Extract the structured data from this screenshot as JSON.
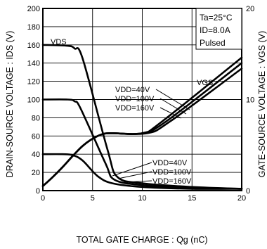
{
  "chart_data": {
    "type": "line",
    "xlabel": "TOTAL GATE CHARGE : Qg (nC)",
    "ylabel_left": "DRAIN-SOURCE VOLTAGE : IDS (V)",
    "ylabel_right": "GATE-SOURCE VOLTAGE : VGS (V)",
    "xlim": [
      0,
      20
    ],
    "ylim_left": [
      0,
      200
    ],
    "ylim_right": [
      0,
      20
    ],
    "x_ticks": [
      "0",
      "5",
      "10",
      "15",
      "20"
    ],
    "y_ticks_left": [
      "0",
      "20",
      "40",
      "60",
      "80",
      "100",
      "120",
      "140",
      "160",
      "180",
      "200"
    ],
    "y_ticks_right": [
      "0",
      "10",
      "20"
    ],
    "grid": true,
    "conditions": [
      "Ta=25°C",
      "ID=8.0A",
      "Pulsed"
    ],
    "series": [
      {
        "name": "VDS VDD=160V",
        "axis": "left",
        "x": [
          0,
          2.5,
          3.2,
          4.0,
          6.5,
          7.5,
          10,
          15,
          20
        ],
        "y": [
          160,
          159,
          156,
          145,
          45,
          15,
          8,
          4,
          2
        ]
      },
      {
        "name": "VDS VDD=100V",
        "axis": "left",
        "x": [
          0,
          2.5,
          3.2,
          3.8,
          6.3,
          7.2,
          10,
          15,
          20
        ],
        "y": [
          100,
          100,
          98,
          90,
          30,
          12,
          6,
          3,
          2
        ]
      },
      {
        "name": "VDS VDD=40V",
        "axis": "left",
        "x": [
          0,
          2.0,
          3.0,
          4.0,
          5.5,
          7.0,
          10,
          15,
          20
        ],
        "y": [
          40,
          40,
          39,
          33,
          16,
          8,
          4,
          2,
          2
        ]
      },
      {
        "name": "VGS VDD=40V",
        "axis": "right",
        "x": [
          0,
          1,
          2,
          3,
          4,
          5,
          6,
          7,
          10,
          12,
          20
        ],
        "y": [
          0.5,
          1.5,
          2.6,
          3.8,
          4.9,
          5.7,
          6.2,
          6.3,
          6.3,
          7.6,
          14.6
        ]
      },
      {
        "name": "VGS VDD=100V",
        "axis": "right",
        "x": [
          0,
          1,
          2,
          3,
          4,
          5,
          6,
          7,
          10,
          12.4,
          20
        ],
        "y": [
          0.5,
          1.5,
          2.6,
          3.8,
          4.9,
          5.7,
          6.2,
          6.3,
          6.3,
          7.6,
          14.0
        ]
      },
      {
        "name": "VGS VDD=160V",
        "axis": "right",
        "x": [
          0,
          1,
          2,
          3,
          4,
          5,
          6,
          7,
          10.5,
          12.8,
          20
        ],
        "y": [
          0.5,
          1.5,
          2.6,
          3.8,
          4.9,
          5.7,
          6.2,
          6.3,
          6.3,
          7.6,
          13.4
        ]
      }
    ],
    "annotations": {
      "vds": "VDS",
      "vgs": "VGS",
      "vdd_upper": [
        "VDD=40V",
        "VDD=100V",
        "VDD=160V"
      ],
      "vdd_lower": [
        "VDD=40V",
        "VDD=100V",
        "VDD=160V"
      ]
    }
  }
}
